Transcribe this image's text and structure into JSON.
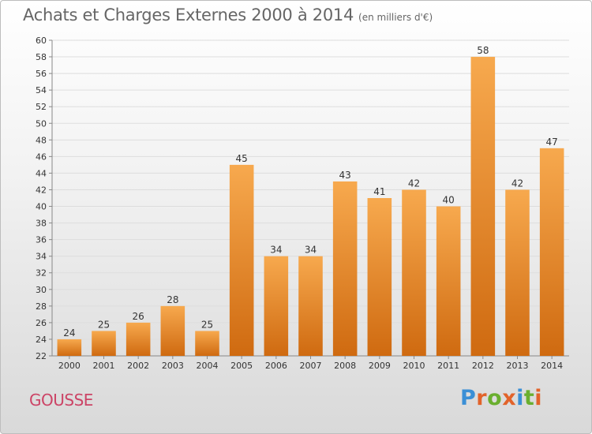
{
  "header": {
    "title": "Achats et Charges Externes 2000 à 2014",
    "subtitle": "(en milliers d'€)"
  },
  "footer": {
    "commune": "GOUSSE",
    "logo": "Proxiti"
  },
  "colors": {
    "bar_light": "#f7a94e",
    "bar_dark": "#cf6a10",
    "title": "#666666",
    "commune": "#cc4466",
    "logo_letters": [
      "#3a8fd6",
      "#e2632a",
      "#6aaf2f",
      "#e2632a",
      "#3a8fd6",
      "#6aaf2f",
      "#e2632a"
    ]
  },
  "chart_data": {
    "type": "bar",
    "title": "Achats et Charges Externes 2000 à 2014",
    "subtitle": "(en milliers d'€)",
    "categories": [
      "2000",
      "2001",
      "2002",
      "2003",
      "2004",
      "2005",
      "2006",
      "2007",
      "2008",
      "2009",
      "2010",
      "2011",
      "2012",
      "2013",
      "2014"
    ],
    "values": [
      24,
      25,
      26,
      28,
      25,
      45,
      34,
      34,
      43,
      41,
      42,
      40,
      58,
      42,
      47
    ],
    "ylim": [
      22,
      60
    ],
    "yticks": [
      22,
      24,
      26,
      28,
      30,
      32,
      34,
      36,
      38,
      40,
      42,
      44,
      46,
      48,
      50,
      52,
      54,
      56,
      58,
      60
    ],
    "grid": true,
    "data_labels": true
  }
}
